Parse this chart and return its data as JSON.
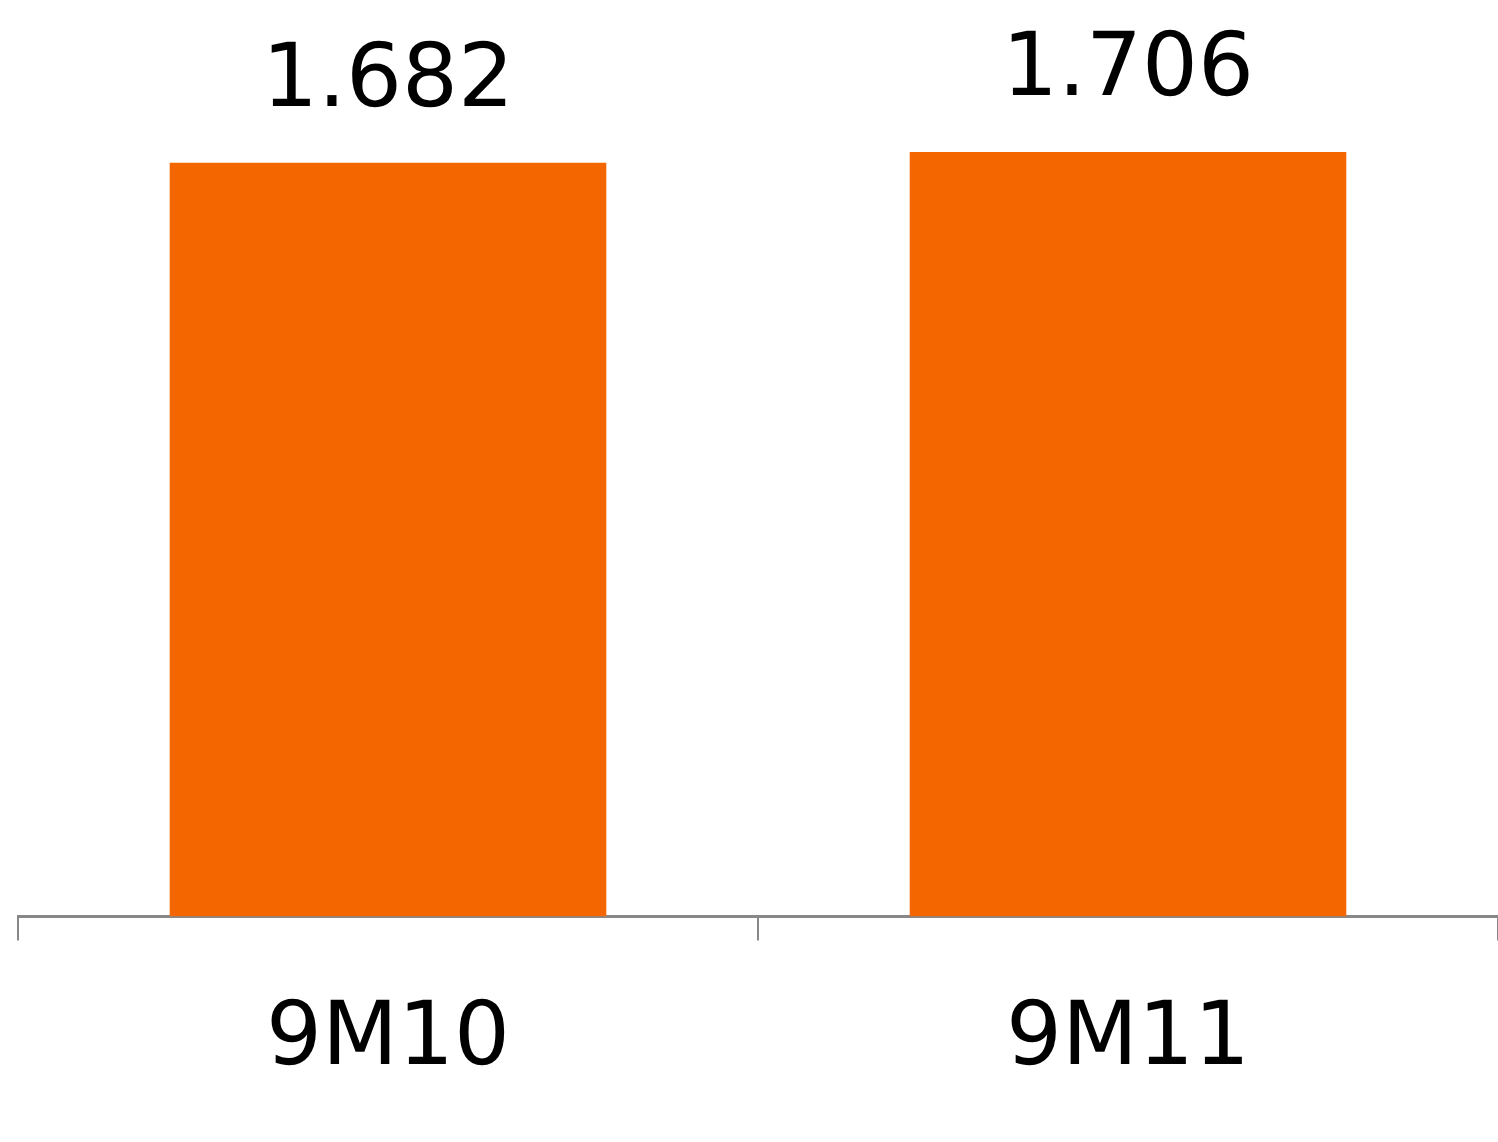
{
  "chart_data": {
    "type": "bar",
    "categories": [
      "9M10",
      "9M11"
    ],
    "values": [
      1.682,
      1.706
    ],
    "color": "#f46700",
    "data_labels": true,
    "grid": false,
    "legend": false
  }
}
